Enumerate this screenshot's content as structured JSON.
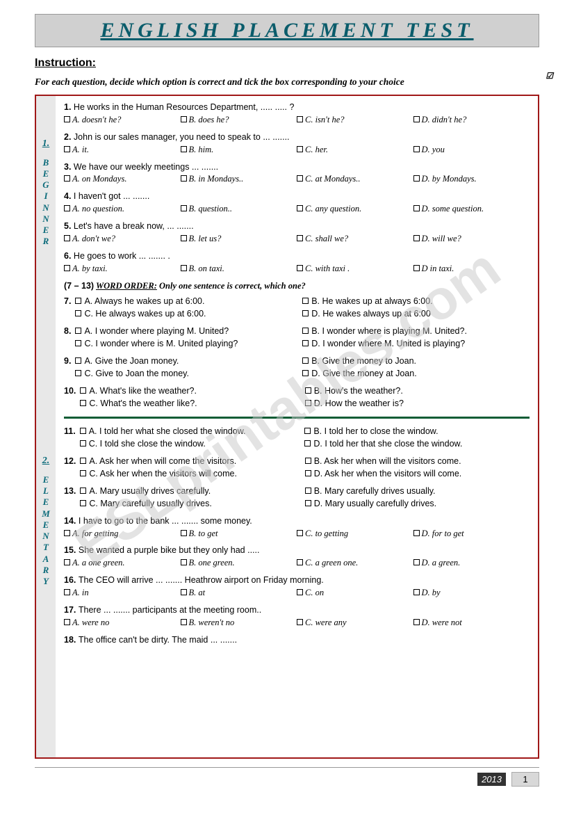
{
  "watermark": "ESLprintables.com",
  "title": "ENGLISH PLACEMENT TEST",
  "instruction_head": "Instruction:",
  "instruction_text": "For each question, decide which option is correct and tick the box corresponding to your choice",
  "sections": [
    {
      "label": "1.",
      "name": "BEGINNER"
    },
    {
      "label": "2.",
      "name": "ELEMENTARY"
    }
  ],
  "word_order_head": {
    "range": "(7 – 13)",
    "title": "WORD ORDER:",
    "sub": "Only one sentence is correct, which one?"
  },
  "q1": {
    "n": "1.",
    "stem": "He works in the Human Resources Department, ..... ..... ?",
    "a": "A. doesn't he?",
    "b": "B. does he?",
    "c": "C. isn't he?",
    "d": "D. didn't he?"
  },
  "q2": {
    "n": "2.",
    "stem": "John is our sales manager, you need to speak to ... .......",
    "a": "A. it.",
    "b": "B. him.",
    "c": "C. her.",
    "d": "D. you"
  },
  "q3": {
    "n": "3.",
    "stem": "We have our weekly meetings  ... .......",
    "a": "A. on Mondays.",
    "b": "B. in Mondays..",
    "c": "C. at Mondays..",
    "d": "D. by Mondays."
  },
  "q4": {
    "n": "4.",
    "stem": "I haven't got ... .......",
    "a": "A. no question.",
    "b": "B. question..",
    "c": "C. any question.",
    "d": "D. some question."
  },
  "q5": {
    "n": "5.",
    "stem": "Let's have a break now, ... .......",
    "a": "A. don't we?",
    "b": "B. let us?",
    "c": "C. shall we?",
    "d": "D. will we?"
  },
  "q6": {
    "n": "6.",
    "stem": "He goes to work ... ....... .",
    "a": "A. by taxi.",
    "b": "B. on taxi.",
    "c": "C. with taxi .",
    "d": "D in taxi."
  },
  "q7": {
    "n": "7.",
    "a": "A. Always he wakes up at 6:00.",
    "b": "B. He wakes up at always 6:00.",
    "c": "C. He always wakes up at 6:00.",
    "d": "D. He wakes always up at 6:00"
  },
  "q8": {
    "n": "8.",
    "a": "A. I wonder where playing M. United?",
    "b": "B. I wonder where is playing M. United?.",
    "c": "C. I wonder where is M. United playing?",
    "d": "D. I wonder where M. United is playing?"
  },
  "q9": {
    "n": "9.",
    "a": "A. Give the Joan money.",
    "b": "B. Give the money to Joan.",
    "c": "C. Give to Joan the money.",
    "d": "D. Give the money at Joan."
  },
  "q10": {
    "n": "10.",
    "a": "A. What's like the weather?.",
    "b": "B. How's the weather?.",
    "c": "C. What's the weather like?.",
    "d": "D. How the weather is?"
  },
  "q11": {
    "n": "11.",
    "a": "A. I told her what she closed the window.",
    "b": "B. I told her to close the window.",
    "c": "C. I told she close the window.",
    "d": "D. I told her that she close the window."
  },
  "q12": {
    "n": "12.",
    "a": "A. Ask her when will come the visitors.",
    "b": "B. Ask her when will the visitors come.",
    "c": "C. Ask her when the visitors will come.",
    "d": "D. Ask her when the visitors will come."
  },
  "q13": {
    "n": "13.",
    "a": "A. Mary usually drives carefully.",
    "b": "B. Mary carefully drives usually.",
    "c": "C. Mary carefully usually drives.",
    "d": "D. Mary usually carefully drives."
  },
  "q14": {
    "n": "14.",
    "stem": "I have to go to the bank ... ....... some money.",
    "a": "A. for getting",
    "b": "B. to get",
    "c": "C. to getting",
    "d": "D. for to get"
  },
  "q15": {
    "n": "15.",
    "stem": "She wanted a purple bike but they only had .....",
    "a": "A. a one green.",
    "b": "B. one green.",
    "c": "C. a green one.",
    "d": "D. a green."
  },
  "q16": {
    "n": "16.",
    "stem": "The CEO will arrive ... ....... Heathrow airport on Friday morning.",
    "a": "A. in",
    "b": "B. at",
    "c": "C. on",
    "d": "D. by"
  },
  "q17": {
    "n": "17.",
    "stem": "There ... ....... participants at the meeting room..",
    "a": "A. were no",
    "b": "B. weren't no",
    "c": "C. were any",
    "d": "D. were not"
  },
  "q18": {
    "n": "18.",
    "stem": "The office can't be dirty. The maid ... .......",
    "a": "",
    "b": "",
    "c": "",
    "d": ""
  },
  "footer": {
    "year": "2013",
    "page": "1"
  }
}
